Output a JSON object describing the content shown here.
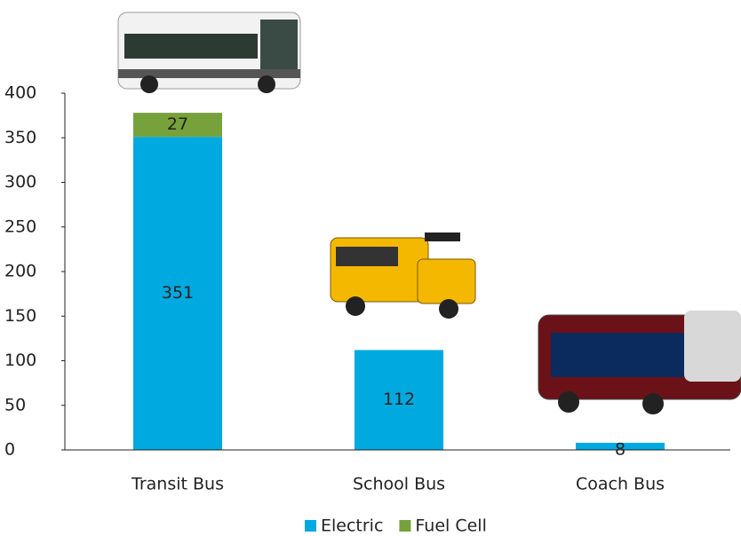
{
  "chart_data": {
    "type": "stacked_bar",
    "categories": [
      "Transit Bus",
      "School Bus",
      "Coach Bus"
    ],
    "series": [
      {
        "name": "Electric",
        "color": "#00a9e0",
        "values": [
          351,
          112,
          8
        ]
      },
      {
        "name": "Fuel Cell",
        "color": "#77a13b",
        "values": [
          27,
          null,
          null
        ]
      }
    ],
    "ylim": [
      0,
      400
    ],
    "yticks": [
      0,
      50,
      100,
      150,
      200,
      250,
      300,
      350,
      400
    ],
    "legend": "bottom"
  }
}
